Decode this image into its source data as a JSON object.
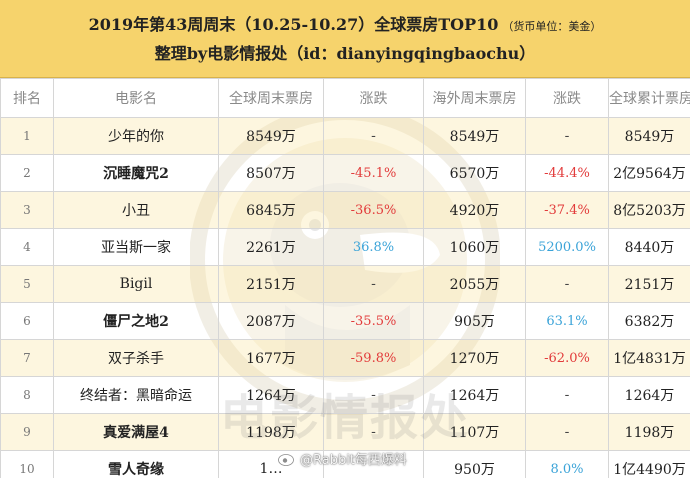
{
  "header": {
    "title_line1": "2019年第43周周末（10.25-10.27）全球票房TOP10",
    "currency_note": "（货币单位：美金）",
    "title_line2": "整理by电影情报处（id：dianyingqingbaochu）"
  },
  "table": {
    "columns": [
      "排名",
      "电影名",
      "全球周末票房",
      "涨跌",
      "海外周末票房",
      "涨跌",
      "全球累计票房"
    ],
    "rows": [
      {
        "rank": "1",
        "name": "少年的你",
        "bold": false,
        "global_weekend": "8549万",
        "global_change": "-",
        "global_change_type": "dash",
        "overseas_weekend": "8549万",
        "overseas_change": "-",
        "overseas_change_type": "dash",
        "cumulative": "8549万"
      },
      {
        "rank": "2",
        "name": "沉睡魔咒2",
        "bold": true,
        "global_weekend": "8507万",
        "global_change": "-45.1%",
        "global_change_type": "neg",
        "overseas_weekend": "6570万",
        "overseas_change": "-44.4%",
        "overseas_change_type": "neg",
        "cumulative": "2亿9564万"
      },
      {
        "rank": "3",
        "name": "小丑",
        "bold": false,
        "global_weekend": "6845万",
        "global_change": "-36.5%",
        "global_change_type": "neg",
        "overseas_weekend": "4920万",
        "overseas_change": "-37.4%",
        "overseas_change_type": "neg",
        "cumulative": "8亿5203万"
      },
      {
        "rank": "4",
        "name": "亚当斯一家",
        "bold": false,
        "global_weekend": "2261万",
        "global_change": "36.8%",
        "global_change_type": "pos",
        "overseas_weekend": "1060万",
        "overseas_change": "5200.0%",
        "overseas_change_type": "pos",
        "cumulative": "8440万"
      },
      {
        "rank": "5",
        "name": "Bigil",
        "bold": false,
        "global_weekend": "2151万",
        "global_change": "-",
        "global_change_type": "dash",
        "overseas_weekend": "2055万",
        "overseas_change": "-",
        "overseas_change_type": "dash",
        "cumulative": "2151万"
      },
      {
        "rank": "6",
        "name": "僵尸之地2",
        "bold": true,
        "global_weekend": "2087万",
        "global_change": "-35.5%",
        "global_change_type": "neg",
        "overseas_weekend": "905万",
        "overseas_change": "63.1%",
        "overseas_change_type": "pos",
        "cumulative": "6382万"
      },
      {
        "rank": "7",
        "name": "双子杀手",
        "bold": false,
        "global_weekend": "1677万",
        "global_change": "-59.8%",
        "global_change_type": "neg",
        "overseas_weekend": "1270万",
        "overseas_change": "-62.0%",
        "overseas_change_type": "neg",
        "cumulative": "1亿4831万"
      },
      {
        "rank": "8",
        "name": "终结者：黑暗命运",
        "bold": false,
        "global_weekend": "1264万",
        "global_change": "-",
        "global_change_type": "dash",
        "overseas_weekend": "1264万",
        "overseas_change": "-",
        "overseas_change_type": "dash",
        "cumulative": "1264万"
      },
      {
        "rank": "9",
        "name": "真爱满屋4",
        "bold": true,
        "global_weekend": "1198万",
        "global_change": "-",
        "global_change_type": "dash",
        "overseas_weekend": "1107万",
        "overseas_change": "-",
        "overseas_change_type": "dash",
        "cumulative": "1198万"
      },
      {
        "rank": "10",
        "name": "雪人奇缘",
        "bold": true,
        "global_weekend": "1…",
        "global_change": "",
        "global_change_type": "dash",
        "overseas_weekend": "950万",
        "overseas_change": "8.0%",
        "overseas_change_type": "pos",
        "cumulative": "1亿4490万"
      }
    ]
  },
  "watermark": {
    "brand_text": "电影情报处",
    "weibo_text": "@Rabbit每西爆料",
    "logo_icon": "duck-logo-icon",
    "weibo_icon": "weibo-icon"
  },
  "colors": {
    "header_bg": "#f6d36c",
    "row_highlight": "#fceec4",
    "negative": "#e23b3b",
    "positive": "#3aa3d8"
  }
}
